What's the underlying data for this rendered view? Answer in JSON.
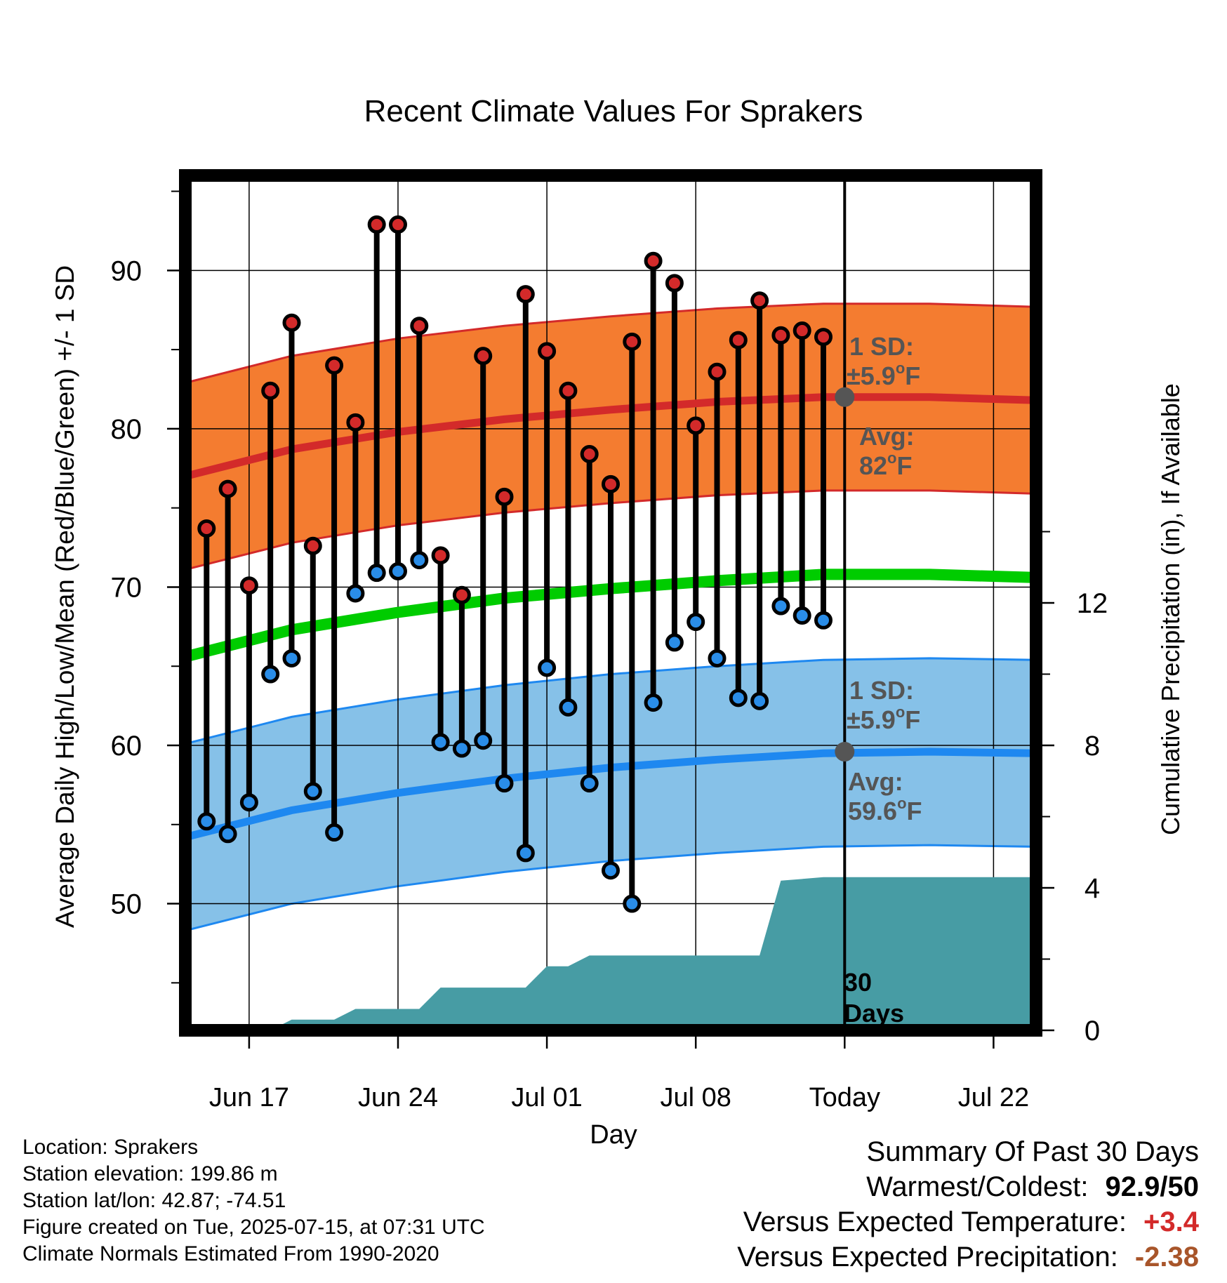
{
  "chart_data": {
    "type": "line",
    "title": "Recent Climate Values For Sprakers",
    "xlabel": "Day",
    "ylabel": "Average Daily High/Low/Mean (Red/Blue/Green) +/- 1 SD",
    "y2label": "Cumulative Precipitation (in), If Available",
    "x_ticks": [
      "Jun 17",
      "Jun 24",
      "Jul 01",
      "Jul 08",
      "Today",
      "Jul 22"
    ],
    "x_range": [
      "2025-06-14",
      "2025-07-24"
    ],
    "y_ticks": [
      50,
      60,
      70,
      80,
      90
    ],
    "ylim": [
      42,
      96
    ],
    "y2_ticks": [
      0,
      4,
      8,
      12
    ],
    "y2_range": [
      0,
      24
    ],
    "today": "2025-07-15",
    "series": [
      {
        "name": "Daily High",
        "color": "#d32a2a",
        "dates": [
          "2025-06-15",
          "2025-06-16",
          "2025-06-17",
          "2025-06-18",
          "2025-06-19",
          "2025-06-20",
          "2025-06-21",
          "2025-06-22",
          "2025-06-23",
          "2025-06-24",
          "2025-06-25",
          "2025-06-26",
          "2025-06-27",
          "2025-06-28",
          "2025-06-29",
          "2025-06-30",
          "2025-07-01",
          "2025-07-02",
          "2025-07-03",
          "2025-07-04",
          "2025-07-05",
          "2025-07-06",
          "2025-07-07",
          "2025-07-08",
          "2025-07-09",
          "2025-07-10",
          "2025-07-11",
          "2025-07-12",
          "2025-07-13",
          "2025-07-14"
        ],
        "values": [
          73.7,
          76.2,
          70.1,
          82.4,
          86.7,
          72.6,
          84.0,
          80.4,
          92.9,
          92.9,
          86.5,
          72.0,
          69.5,
          84.6,
          75.7,
          88.5,
          84.9,
          82.4,
          78.4,
          76.5,
          85.5,
          90.6,
          89.2,
          80.2,
          83.6,
          85.6,
          88.1,
          85.9,
          86.2,
          85.8
        ]
      },
      {
        "name": "Daily Low",
        "color": "#2a8de8",
        "dates": [
          "2025-06-15",
          "2025-06-16",
          "2025-06-17",
          "2025-06-18",
          "2025-06-19",
          "2025-06-20",
          "2025-06-21",
          "2025-06-22",
          "2025-06-23",
          "2025-06-24",
          "2025-06-25",
          "2025-06-26",
          "2025-06-27",
          "2025-06-28",
          "2025-06-29",
          "2025-06-30",
          "2025-07-01",
          "2025-07-02",
          "2025-07-03",
          "2025-07-04",
          "2025-07-05",
          "2025-07-06",
          "2025-07-07",
          "2025-07-08",
          "2025-07-09",
          "2025-07-10",
          "2025-07-11",
          "2025-07-12",
          "2025-07-13",
          "2025-07-14"
        ],
        "values": [
          55.2,
          54.4,
          56.4,
          64.5,
          65.5,
          57.1,
          54.5,
          69.6,
          70.9,
          71.0,
          71.7,
          60.2,
          59.8,
          60.3,
          57.6,
          53.2,
          64.9,
          62.4,
          57.6,
          52.1,
          50.0,
          62.7,
          66.5,
          67.8,
          65.5,
          63.0,
          62.8,
          68.8,
          68.2,
          67.9
        ]
      },
      {
        "name": "Normal High",
        "color": "#d32a2a",
        "dates": [
          "2025-06-14",
          "2025-06-19",
          "2025-06-24",
          "2025-06-29",
          "2025-07-04",
          "2025-07-09",
          "2025-07-14",
          "2025-07-19",
          "2025-07-24"
        ],
        "values": [
          77.0,
          78.7,
          79.8,
          80.6,
          81.2,
          81.7,
          82.0,
          82.0,
          81.8
        ]
      },
      {
        "name": "Normal Low",
        "color": "#1e88f0",
        "dates": [
          "2025-06-14",
          "2025-06-19",
          "2025-06-24",
          "2025-06-29",
          "2025-07-04",
          "2025-07-09",
          "2025-07-14",
          "2025-07-19",
          "2025-07-24"
        ],
        "values": [
          54.2,
          55.9,
          57.0,
          57.9,
          58.6,
          59.1,
          59.5,
          59.6,
          59.5
        ]
      },
      {
        "name": "Normal Mean",
        "color": "#00cc00",
        "dates": [
          "2025-06-14",
          "2025-06-19",
          "2025-06-24",
          "2025-06-29",
          "2025-07-04",
          "2025-07-09",
          "2025-07-14",
          "2025-07-19",
          "2025-07-24"
        ],
        "values": [
          65.6,
          67.3,
          68.4,
          69.3,
          69.9,
          70.4,
          70.8,
          70.8,
          70.6
        ]
      },
      {
        "name": "Cumulative Precipitation",
        "color": "#479ca4",
        "dates": [
          "2025-06-14",
          "2025-06-16",
          "2025-06-18",
          "2025-06-19",
          "2025-06-21",
          "2025-06-22",
          "2025-06-25",
          "2025-06-26",
          "2025-06-30",
          "2025-07-01",
          "2025-07-02",
          "2025-07-03",
          "2025-07-11",
          "2025-07-12",
          "2025-07-14",
          "2025-07-24"
        ],
        "values": [
          0.0,
          0.0,
          0.0,
          0.3,
          0.3,
          0.6,
          0.6,
          1.2,
          1.2,
          1.8,
          1.8,
          2.1,
          2.1,
          4.2,
          4.3,
          4.3
        ]
      }
    ],
    "sd_degrees": 5.9,
    "annotations": {
      "high_sd_line1": "1 SD:",
      "high_sd_line2": "±5.9",
      "high_sd_unit": "F",
      "high_avg_line1": "Avg:",
      "high_avg_line2": "82",
      "high_avg_unit": "F",
      "low_sd_line1": "1 SD:",
      "low_sd_line2": "±5.9",
      "low_sd_unit": "F",
      "low_avg_line1": "Avg:",
      "low_avg_line2": "59.6",
      "low_avg_unit": "F",
      "degree": "o",
      "precip_line1": "30",
      "precip_line2": "Days"
    },
    "colors": {
      "high_band": "#f47c30",
      "high_band_edge": "#d32a2a",
      "low_band": "#86c1e8",
      "low_band_edge": "#1e88f0",
      "mean_line": "#00cc00",
      "precip": "#479ca4",
      "marker_high": "#d32a2a",
      "marker_low": "#2a8de8",
      "annotation_text": "#555555"
    }
  },
  "footer": {
    "location": "Location: Sprakers",
    "elevation": "Station elevation: 199.86 m",
    "latlon": "Station lat/lon: 42.87; -74.51",
    "created": "Figure created on Tue, 2025-07-15, at 07:31 UTC",
    "normals": "Climate Normals Estimated From 1990-2020"
  },
  "summary": {
    "title": "Summary Of Past 30 Days",
    "warmest_label": "Warmest/Coldest:",
    "warmest_value": "92.9/50",
    "temp_label": "Versus Expected Temperature:",
    "temp_value": "+3.4",
    "temp_color": "#d32a2a",
    "precip_label": "Versus Expected Precipitation:",
    "precip_value": "-2.38",
    "precip_color": "#a8552a"
  }
}
